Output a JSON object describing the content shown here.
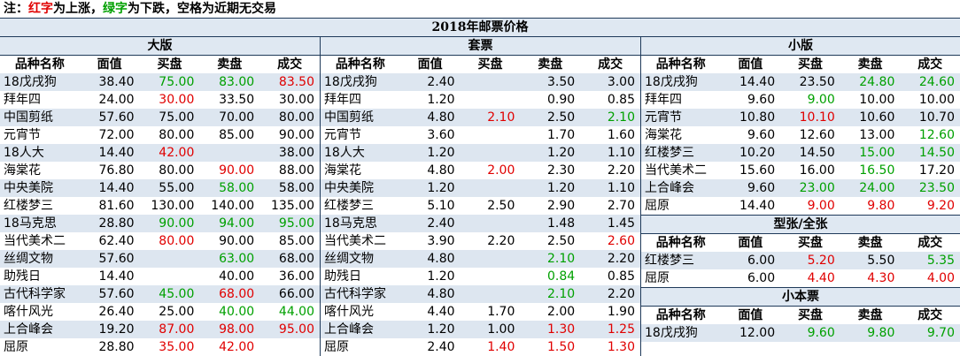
{
  "note": {
    "prefix": "注：",
    "red_word": "红字",
    "mid1": "为上涨，",
    "green_word": "绿字",
    "mid2": "为下跌，空格为近期无交易"
  },
  "title": "2018年邮票价格",
  "headers": [
    "品种名称",
    "面值",
    "买盘",
    "卖盘",
    "成交"
  ],
  "sections": [
    {
      "id": "dabain",
      "title": "大版",
      "rows": [
        {
          "name": "18戊戌狗",
          "face": "38.40",
          "buy": "75.00",
          "buy_c": "green",
          "sell": "83.00",
          "sell_c": "green",
          "deal": "83.50",
          "deal_c": "red"
        },
        {
          "name": "拜年四",
          "face": "24.00",
          "buy": "30.00",
          "buy_c": "red",
          "sell": "33.50",
          "sell_c": "black",
          "deal": "30.00",
          "deal_c": "black"
        },
        {
          "name": "中国剪纸",
          "face": "57.60",
          "buy": "75.00",
          "buy_c": "black",
          "sell": "70.00",
          "sell_c": "black",
          "deal": "80.00",
          "deal_c": "black"
        },
        {
          "name": "元宵节",
          "face": "72.00",
          "buy": "80.00",
          "buy_c": "black",
          "sell": "85.00",
          "sell_c": "black",
          "deal": "90.00",
          "deal_c": "black"
        },
        {
          "name": "18人大",
          "face": "14.40",
          "buy": "42.00",
          "buy_c": "red",
          "sell": "",
          "sell_c": "black",
          "deal": "38.00",
          "deal_c": "black"
        },
        {
          "name": "海棠花",
          "face": "76.80",
          "buy": "80.00",
          "buy_c": "black",
          "sell": "90.00",
          "sell_c": "red",
          "deal": "88.00",
          "deal_c": "black"
        },
        {
          "name": "中央美院",
          "face": "14.40",
          "buy": "55.00",
          "buy_c": "black",
          "sell": "58.00",
          "sell_c": "green",
          "deal": "58.00",
          "deal_c": "black"
        },
        {
          "name": "红楼梦三",
          "face": "81.60",
          "buy": "130.00",
          "buy_c": "black",
          "sell": "140.00",
          "sell_c": "black",
          "deal": "135.00",
          "deal_c": "black"
        },
        {
          "name": "18马克思",
          "face": "28.80",
          "buy": "90.00",
          "buy_c": "green",
          "sell": "94.00",
          "sell_c": "green",
          "deal": "95.00",
          "deal_c": "green"
        },
        {
          "name": "当代美术二",
          "face": "62.40",
          "buy": "80.00",
          "buy_c": "red",
          "sell": "90.00",
          "sell_c": "black",
          "deal": "85.00",
          "deal_c": "black"
        },
        {
          "name": "丝绸文物",
          "face": "57.60",
          "buy": "",
          "buy_c": "black",
          "sell": "63.00",
          "sell_c": "green",
          "deal": "68.00",
          "deal_c": "black"
        },
        {
          "name": "助残日",
          "face": "14.40",
          "buy": "",
          "buy_c": "black",
          "sell": "40.00",
          "sell_c": "black",
          "deal": "36.00",
          "deal_c": "black"
        },
        {
          "name": "古代科学家",
          "face": "57.60",
          "buy": "45.00",
          "buy_c": "green",
          "sell": "68.00",
          "sell_c": "red",
          "deal": "66.00",
          "deal_c": "black"
        },
        {
          "name": "喀什风光",
          "face": "26.40",
          "buy": "25.00",
          "buy_c": "black",
          "sell": "40.00",
          "sell_c": "green",
          "deal": "44.00",
          "deal_c": "green"
        },
        {
          "name": "上合峰会",
          "face": "19.20",
          "buy": "87.00",
          "buy_c": "red",
          "sell": "98.00",
          "sell_c": "red",
          "deal": "95.00",
          "deal_c": "red"
        },
        {
          "name": "屈原",
          "face": "28.80",
          "buy": "35.00",
          "buy_c": "red",
          "sell": "42.00",
          "sell_c": "red",
          "deal": "",
          "deal_c": "black"
        }
      ]
    },
    {
      "id": "taopiao",
      "title": "套票",
      "rows": [
        {
          "name": "18戊戌狗",
          "face": "2.40",
          "buy": "",
          "buy_c": "black",
          "sell": "3.50",
          "sell_c": "black",
          "deal": "3.00",
          "deal_c": "black"
        },
        {
          "name": "拜年四",
          "face": "1.20",
          "buy": "",
          "buy_c": "black",
          "sell": "0.90",
          "sell_c": "black",
          "deal": "0.85",
          "deal_c": "black"
        },
        {
          "name": "中国剪纸",
          "face": "4.80",
          "buy": "2.10",
          "buy_c": "red",
          "sell": "2.50",
          "sell_c": "black",
          "deal": "2.10",
          "deal_c": "green"
        },
        {
          "name": "元宵节",
          "face": "3.60",
          "buy": "",
          "buy_c": "black",
          "sell": "1.70",
          "sell_c": "black",
          "deal": "1.60",
          "deal_c": "black"
        },
        {
          "name": "18人大",
          "face": "1.20",
          "buy": "",
          "buy_c": "black",
          "sell": "1.20",
          "sell_c": "black",
          "deal": "1.10",
          "deal_c": "black"
        },
        {
          "name": "海棠花",
          "face": "4.80",
          "buy": "2.00",
          "buy_c": "red",
          "sell": "2.30",
          "sell_c": "black",
          "deal": "2.20",
          "deal_c": "black"
        },
        {
          "name": "中央美院",
          "face": "1.20",
          "buy": "",
          "buy_c": "black",
          "sell": "1.20",
          "sell_c": "black",
          "deal": "1.10",
          "deal_c": "black"
        },
        {
          "name": "红楼梦三",
          "face": "5.10",
          "buy": "2.50",
          "buy_c": "black",
          "sell": "2.90",
          "sell_c": "black",
          "deal": "2.70",
          "deal_c": "black"
        },
        {
          "name": "18马克思",
          "face": "2.40",
          "buy": "",
          "buy_c": "black",
          "sell": "1.48",
          "sell_c": "black",
          "deal": "1.45",
          "deal_c": "black"
        },
        {
          "name": "当代美术二",
          "face": "3.90",
          "buy": "2.20",
          "buy_c": "black",
          "sell": "2.50",
          "sell_c": "black",
          "deal": "2.60",
          "deal_c": "red"
        },
        {
          "name": "丝绸文物",
          "face": "4.80",
          "buy": "",
          "buy_c": "black",
          "sell": "2.10",
          "sell_c": "green",
          "deal": "2.20",
          "deal_c": "black"
        },
        {
          "name": "助残日",
          "face": "1.20",
          "buy": "",
          "buy_c": "black",
          "sell": "0.84",
          "sell_c": "green",
          "deal": "0.85",
          "deal_c": "black"
        },
        {
          "name": "古代科学家",
          "face": "4.80",
          "buy": "",
          "buy_c": "black",
          "sell": "2.10",
          "sell_c": "green",
          "deal": "2.20",
          "deal_c": "black"
        },
        {
          "name": "喀什风光",
          "face": "4.40",
          "buy": "1.70",
          "buy_c": "black",
          "sell": "2.00",
          "sell_c": "black",
          "deal": "1.90",
          "deal_c": "black"
        },
        {
          "name": "上合峰会",
          "face": "1.20",
          "buy": "1.00",
          "buy_c": "black",
          "sell": "1.30",
          "sell_c": "red",
          "deal": "1.25",
          "deal_c": "red"
        },
        {
          "name": "屈原",
          "face": "2.40",
          "buy": "1.40",
          "buy_c": "red",
          "sell": "1.50",
          "sell_c": "red",
          "deal": "1.30",
          "deal_c": "red"
        }
      ]
    },
    {
      "id": "xiaoban",
      "title": "小版",
      "rows": [
        {
          "name": "18戊戌狗",
          "face": "14.40",
          "buy": "23.50",
          "buy_c": "black",
          "sell": "24.80",
          "sell_c": "green",
          "deal": "24.60",
          "deal_c": "green"
        },
        {
          "name": "拜年四",
          "face": "9.60",
          "buy": "9.00",
          "buy_c": "green",
          "sell": "10.00",
          "sell_c": "black",
          "deal": "10.00",
          "deal_c": "black"
        },
        {
          "name": "元宵节",
          "face": "10.80",
          "buy": "10.10",
          "buy_c": "red",
          "sell": "10.60",
          "sell_c": "black",
          "deal": "10.70",
          "deal_c": "black"
        },
        {
          "name": "海棠花",
          "face": "9.60",
          "buy": "12.60",
          "buy_c": "black",
          "sell": "13.00",
          "sell_c": "black",
          "deal": "12.60",
          "deal_c": "green"
        },
        {
          "name": "红楼梦三",
          "face": "10.20",
          "buy": "14.50",
          "buy_c": "black",
          "sell": "15.00",
          "sell_c": "green",
          "deal": "14.50",
          "deal_c": "green"
        },
        {
          "name": "当代美术二",
          "face": "15.60",
          "buy": "16.00",
          "buy_c": "black",
          "sell": "16.50",
          "sell_c": "green",
          "deal": "17.20",
          "deal_c": "black"
        },
        {
          "name": "上合峰会",
          "face": "9.60",
          "buy": "23.00",
          "buy_c": "green",
          "sell": "24.00",
          "sell_c": "green",
          "deal": "23.50",
          "deal_c": "green"
        },
        {
          "name": "屈原",
          "face": "14.40",
          "buy": "9.00",
          "buy_c": "red",
          "sell": "9.80",
          "sell_c": "red",
          "deal": "9.20",
          "deal_c": "red"
        }
      ]
    },
    {
      "id": "xingzhang",
      "title": "型张/全张",
      "rows": [
        {
          "name": "红楼梦三",
          "face": "6.00",
          "buy": "5.20",
          "buy_c": "red",
          "sell": "5.50",
          "sell_c": "black",
          "deal": "5.35",
          "deal_c": "green"
        },
        {
          "name": "屈原",
          "face": "6.00",
          "buy": "4.40",
          "buy_c": "red",
          "sell": "4.30",
          "sell_c": "red",
          "deal": "4.00",
          "deal_c": "red"
        }
      ]
    },
    {
      "id": "xiaobenpiao",
      "title": "小本票",
      "rows": [
        {
          "name": "18戊戌狗",
          "face": "12.00",
          "buy": "9.60",
          "buy_c": "green",
          "sell": "9.80",
          "sell_c": "green",
          "deal": "9.70",
          "deal_c": "green"
        }
      ]
    }
  ]
}
